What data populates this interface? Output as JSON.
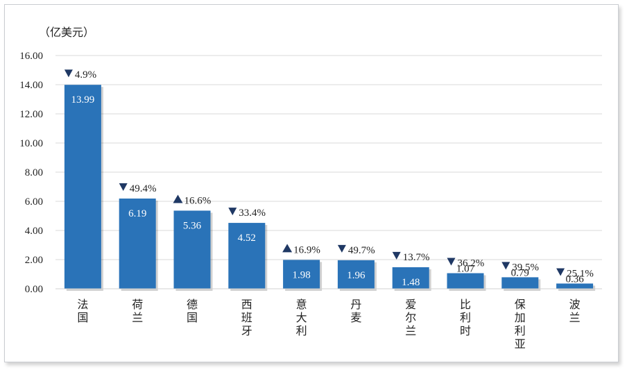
{
  "chart_data": {
    "type": "bar",
    "ylabel": "（亿美元）",
    "ylim": [
      0,
      16
    ],
    "yticks": [
      "0.00",
      "2.00",
      "4.00",
      "6.00",
      "8.00",
      "10.00",
      "12.00",
      "14.00",
      "16.00"
    ],
    "categories": [
      "法国",
      "荷兰",
      "德国",
      "西班牙",
      "意大利",
      "丹麦",
      "爱尔兰",
      "比利时",
      "保加利亚",
      "波兰"
    ],
    "values": [
      13.99,
      6.19,
      5.36,
      4.52,
      1.98,
      1.96,
      1.48,
      1.07,
      0.79,
      0.36
    ],
    "value_labels": [
      "13.99",
      "6.19",
      "5.36",
      "4.52",
      "1.98",
      "1.96",
      "1.48",
      "1.07",
      "0.79",
      "0.36"
    ],
    "changes": [
      {
        "direction": "down",
        "label": "4.9%"
      },
      {
        "direction": "down",
        "label": "49.4%"
      },
      {
        "direction": "up",
        "label": "16.6%"
      },
      {
        "direction": "down",
        "label": "33.4%"
      },
      {
        "direction": "up",
        "label": "16.9%"
      },
      {
        "direction": "down",
        "label": "49.7%"
      },
      {
        "direction": "down",
        "label": "13.7%"
      },
      {
        "direction": "down",
        "label": "36.2%"
      },
      {
        "direction": "down",
        "label": "39.5%"
      },
      {
        "direction": "down",
        "label": "25.1%"
      }
    ],
    "grid": true,
    "bar_color": "#2a73b8",
    "marker_color": "#1f3864"
  }
}
